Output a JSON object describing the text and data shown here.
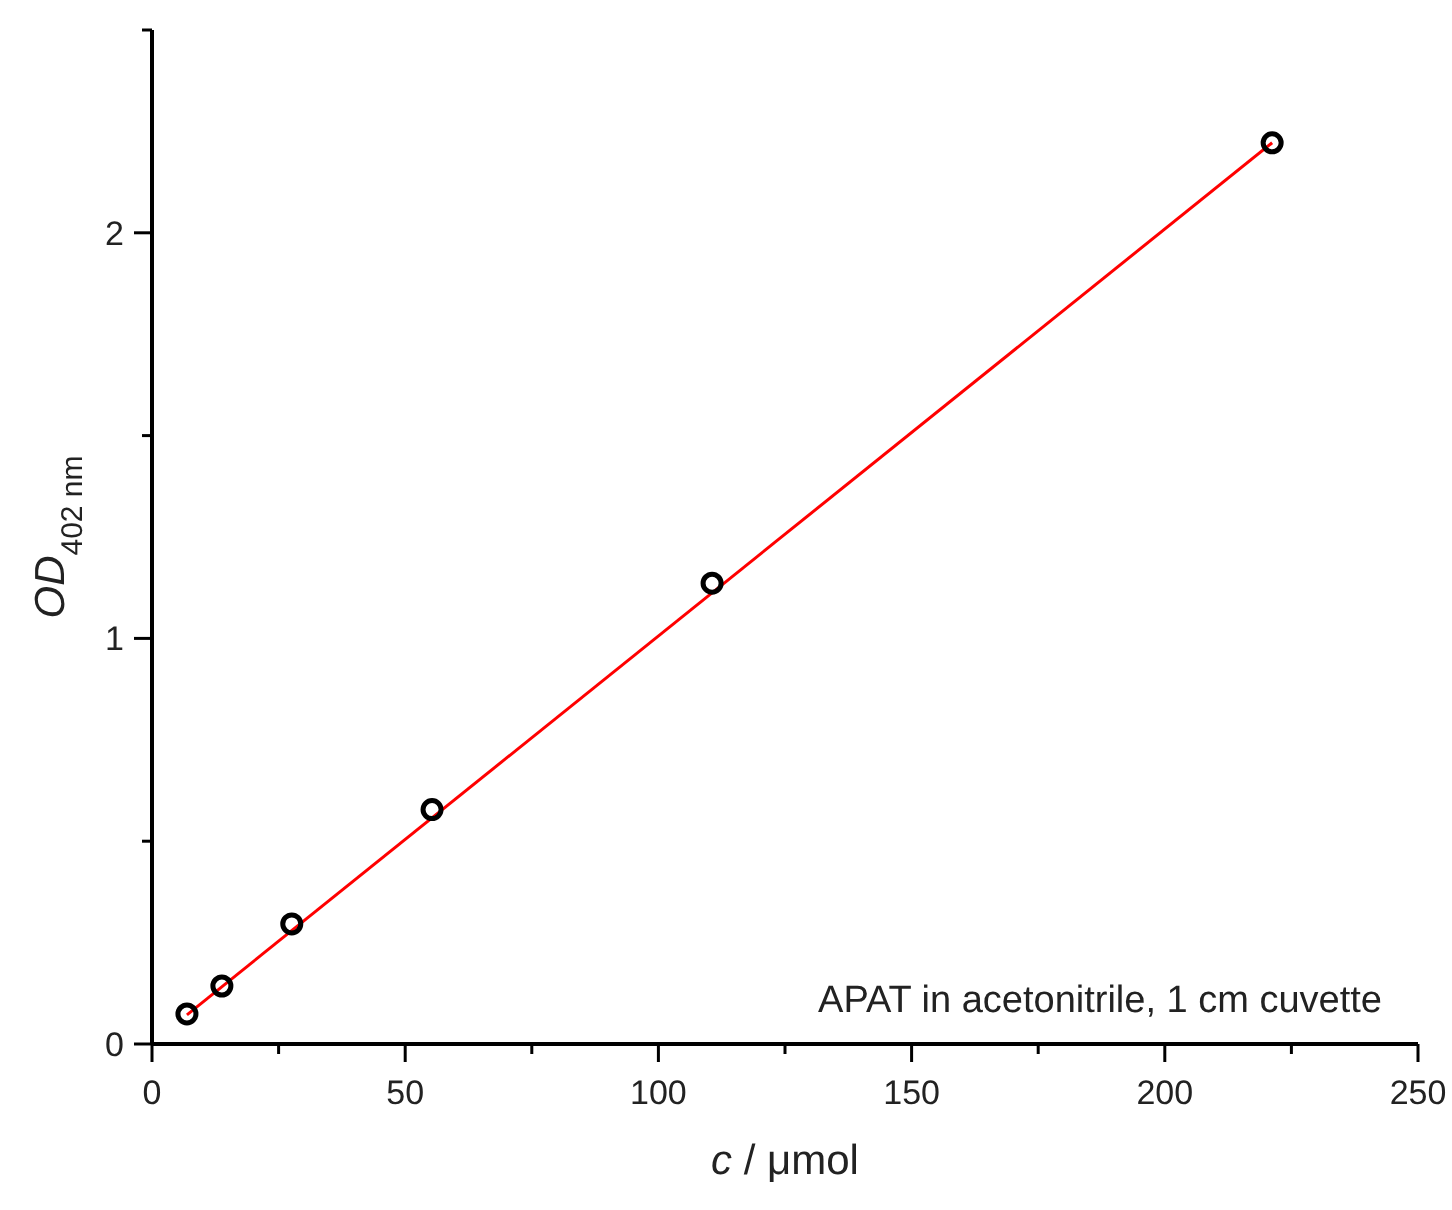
{
  "chart_data": {
    "type": "scatter",
    "xlabel": "c / μmol",
    "ylabel": "OD$_{402 nm}$",
    "xlim": [
      0,
      250
    ],
    "ylim": [
      0,
      2.5
    ],
    "xticks": [
      0,
      {
        "value": 25,
        "label": null
      },
      50,
      {
        "value": 75,
        "label": null
      },
      100,
      {
        "value": 125,
        "label": null
      },
      150,
      {
        "value": 175,
        "label": null
      },
      200,
      {
        "value": 225,
        "label": null
      },
      250
    ],
    "yticks": [
      0,
      {
        "value": 0.5,
        "label": null
      },
      1,
      {
        "value": 1.5,
        "label": null
      },
      2,
      {
        "value": 2.5,
        "label": null
      }
    ],
    "grid": false,
    "series": [
      {
        "type": "line",
        "color": "#ff0000",
        "marker": "none",
        "line_style": "solid",
        "x": [
          6.9,
          221.2
        ],
        "values": [
          0.072,
          2.222
        ]
      },
      {
        "color": "#000000",
        "marker": "circle",
        "x": [
          6.9,
          13.8,
          27.6,
          55.3,
          110.6,
          221.2
        ],
        "values": [
          0.074,
          0.143,
          0.296,
          0.578,
          1.136,
          2.222
        ]
      }
    ],
    "annotations": [
      "APAT in acetonitrile, 1 cm cuvette"
    ]
  }
}
